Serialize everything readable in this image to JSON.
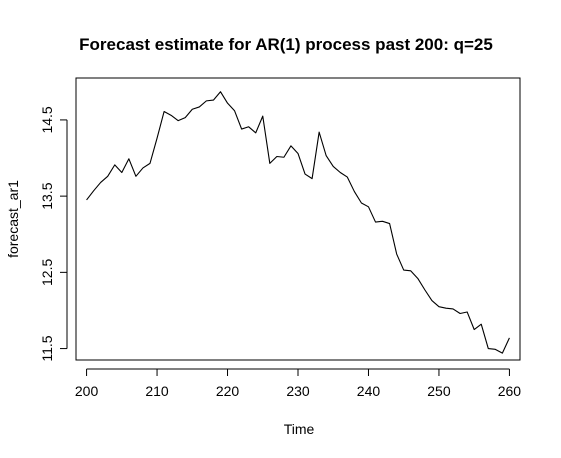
{
  "chart_data": {
    "type": "line",
    "title": "Forecast estimate for AR(1) process past 200: q=25",
    "xlabel": "Time",
    "ylabel": "forecast_ar1",
    "xlim": [
      198.5,
      261.5
    ],
    "ylim": [
      11.35,
      15.05
    ],
    "xticks": [
      200,
      210,
      220,
      230,
      240,
      250,
      260
    ],
    "yticks": [
      11.5,
      12.5,
      13.5,
      14.5
    ],
    "xtick_labels": [
      "200",
      "210",
      "220",
      "230",
      "240",
      "250",
      "260"
    ],
    "ytick_labels": [
      "11.5",
      "12.5",
      "13.5",
      "14.5"
    ],
    "grid": false,
    "legend": "none",
    "line_color": "#000000",
    "x": [
      200,
      201,
      202,
      203,
      204,
      205,
      206,
      207,
      208,
      209,
      210,
      211,
      212,
      213,
      214,
      215,
      216,
      217,
      218,
      219,
      220,
      221,
      222,
      223,
      224,
      225,
      226,
      227,
      228,
      229,
      230,
      231,
      232,
      233,
      234,
      235,
      236,
      237,
      238,
      239,
      240,
      241,
      242,
      243,
      244,
      245,
      246,
      247,
      248,
      249,
      250,
      251,
      252,
      253,
      254,
      255,
      256,
      257,
      258,
      259,
      260
    ],
    "y": [
      13.45,
      13.57,
      13.68,
      13.76,
      13.91,
      13.81,
      13.99,
      13.76,
      13.87,
      13.93,
      14.26,
      14.61,
      14.56,
      14.49,
      14.53,
      14.64,
      14.67,
      14.75,
      14.76,
      14.87,
      14.72,
      14.62,
      14.38,
      14.41,
      14.33,
      14.55,
      13.93,
      14.02,
      14.01,
      14.16,
      14.06,
      13.79,
      13.73,
      14.34,
      14.03,
      13.89,
      13.81,
      13.75,
      13.56,
      13.41,
      13.36,
      13.16,
      13.17,
      13.14,
      12.74,
      12.53,
      12.52,
      12.42,
      12.27,
      12.13,
      12.05,
      12.03,
      12.02,
      11.96,
      11.98,
      11.75,
      11.82,
      11.5,
      11.49,
      11.44,
      11.64
    ]
  }
}
